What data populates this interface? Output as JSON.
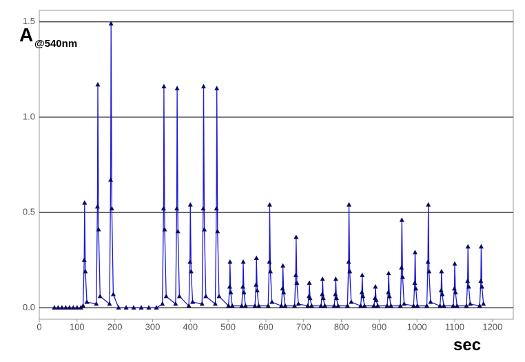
{
  "chart_data": {
    "type": "line",
    "ylabel": "A",
    "ylabel_sub": "@540nm",
    "xlabel": "sec",
    "color": "#1a1ad6",
    "marker_color": "#0a0a60",
    "grid": true,
    "xlim": [
      0,
      1255
    ],
    "ylim": [
      -0.06,
      1.56
    ],
    "xticks": [
      0,
      100,
      200,
      300,
      400,
      500,
      600,
      700,
      800,
      900,
      1000,
      1100,
      1200
    ],
    "yticks": [
      {
        "value": 0,
        "label": "0.0"
      },
      0.5,
      {
        "value": 1,
        "label": "1.0"
      },
      1.5
    ],
    "x": [
      40,
      50,
      60,
      70,
      80,
      90,
      100,
      110,
      116,
      119,
      120,
      122,
      126,
      151,
      154,
      155,
      157,
      161,
      186,
      189,
      190,
      192,
      196,
      210,
      230,
      250,
      270,
      290,
      310,
      326,
      329,
      330,
      332,
      336,
      361,
      364,
      365,
      367,
      371,
      396,
      399,
      400,
      402,
      406,
      431,
      434,
      435,
      437,
      441,
      466,
      469,
      470,
      472,
      476,
      501,
      504,
      505,
      507,
      511,
      536,
      539,
      540,
      542,
      546,
      571,
      574,
      575,
      577,
      581,
      606,
      609,
      610,
      612,
      616,
      641,
      644,
      645,
      647,
      651,
      676,
      679,
      680,
      682,
      686,
      711,
      714,
      715,
      717,
      721,
      746,
      749,
      750,
      752,
      756,
      781,
      784,
      785,
      787,
      791,
      816,
      819,
      820,
      822,
      826,
      851,
      854,
      855,
      857,
      861,
      886,
      889,
      890,
      892,
      896,
      921,
      924,
      925,
      927,
      931,
      956,
      959,
      960,
      962,
      966,
      991,
      994,
      995,
      997,
      1001,
      1026,
      1029,
      1030,
      1032,
      1036,
      1061,
      1064,
      1065,
      1067,
      1071,
      1096,
      1099,
      1100,
      1102,
      1106,
      1131,
      1134,
      1135,
      1137,
      1141,
      1166,
      1169,
      1170,
      1172,
      1176
    ],
    "values": [
      0,
      0,
      0,
      0,
      0,
      0,
      0,
      0,
      0.01,
      0.25,
      0.55,
      0.19,
      0.03,
      0.02,
      0.53,
      1.17,
      0.41,
      0.06,
      0.02,
      0.67,
      1.49,
      0.52,
      0.07,
      0,
      0,
      0,
      0,
      0,
      0,
      0.02,
      0.52,
      1.16,
      0.41,
      0.06,
      0.02,
      0.52,
      1.15,
      0.4,
      0.06,
      0.01,
      0.24,
      0.54,
      0.19,
      0.03,
      0.02,
      0.52,
      1.16,
      0.41,
      0.06,
      0.02,
      0.52,
      1.15,
      0.4,
      0.06,
      0.01,
      0.11,
      0.24,
      0.08,
      0.01,
      0.01,
      0.11,
      0.24,
      0.08,
      0.01,
      0.01,
      0.12,
      0.26,
      0.09,
      0.01,
      0.01,
      0.24,
      0.54,
      0.19,
      0.03,
      0.01,
      0.1,
      0.22,
      0.08,
      0.01,
      0.01,
      0.17,
      0.37,
      0.13,
      0.02,
      0.01,
      0.06,
      0.13,
      0.05,
      0.01,
      0.01,
      0.07,
      0.15,
      0.05,
      0.01,
      0.01,
      0.07,
      0.15,
      0.05,
      0.01,
      0.01,
      0.24,
      0.54,
      0.19,
      0.03,
      0.01,
      0.08,
      0.17,
      0.06,
      0.01,
      0.01,
      0.05,
      0.11,
      0.04,
      0.01,
      0.01,
      0.08,
      0.18,
      0.06,
      0.01,
      0.01,
      0.21,
      0.46,
      0.16,
      0.02,
      0.01,
      0.13,
      0.29,
      0.1,
      0.01,
      0.01,
      0.24,
      0.54,
      0.19,
      0.03,
      0.01,
      0.09,
      0.19,
      0.07,
      0.01,
      0.01,
      0.1,
      0.23,
      0.08,
      0.01,
      0.01,
      0.14,
      0.32,
      0.11,
      0.02,
      0.01,
      0.14,
      0.32,
      0.11,
      0.02
    ]
  }
}
